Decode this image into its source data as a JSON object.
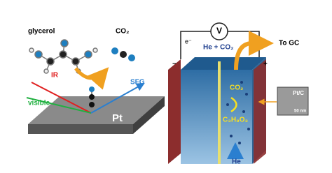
{
  "left": {
    "molecule_label": "glycerol",
    "product_label": "CO₂",
    "beams": {
      "ir": "IR",
      "visible": "visible",
      "sfg": "SFG"
    },
    "surface": "Pt"
  },
  "right": {
    "meter": "V",
    "electron": "e⁻",
    "gas_out": "He + CO₂",
    "outlet": "To GC",
    "minus": "−",
    "plus": "+",
    "product": "CO₂",
    "reactant": "C₃H₈O₃",
    "inlet": "He",
    "inset": {
      "label": "Pt/C",
      "scale": "50 nm"
    }
  }
}
